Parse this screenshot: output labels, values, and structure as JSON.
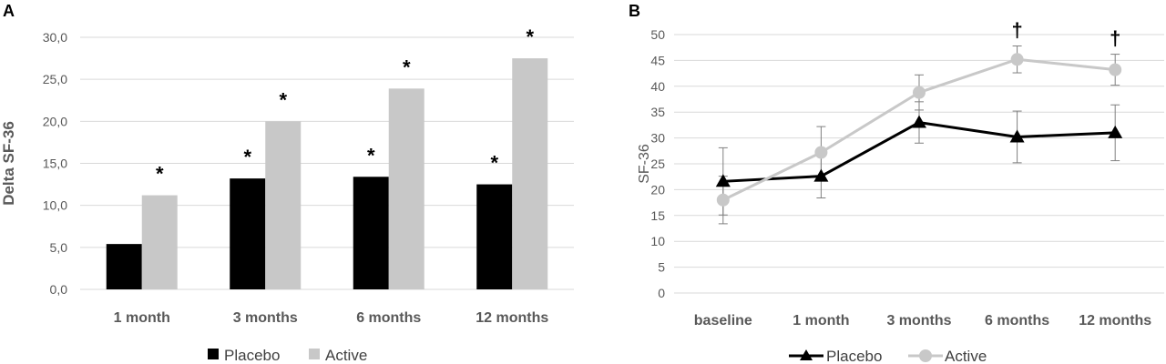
{
  "colors": {
    "placebo": "#000000",
    "active": "#c8c8c8",
    "grid": "#d9d9d9",
    "axis_text": "#595959"
  },
  "chart_data": [
    {
      "panel": "A",
      "type": "bar",
      "ylabel": "Delta SF-36",
      "ylim": [
        0,
        30
      ],
      "yticks": [
        "0,0",
        "5,0",
        "10,0",
        "15,0",
        "20,0",
        "25,0",
        "30,0"
      ],
      "grid": true,
      "legend_position": "bottom",
      "categories": [
        "1 month",
        "3 months",
        "6 months",
        "12 months"
      ],
      "series": [
        {
          "name": "Placebo",
          "values": [
            5.4,
            13.2,
            13.4,
            12.5
          ],
          "marks": [
            "",
            "*",
            "*",
            "*"
          ]
        },
        {
          "name": "Active",
          "values": [
            11.2,
            20.0,
            23.9,
            27.5
          ],
          "marks": [
            "*",
            "*",
            "*",
            "*"
          ]
        }
      ]
    },
    {
      "panel": "B",
      "type": "line",
      "ylabel": "SF-36",
      "ylim": [
        0,
        50
      ],
      "yticks": [
        "0",
        "5",
        "10",
        "15",
        "20",
        "25",
        "30",
        "35",
        "40",
        "45",
        "50"
      ],
      "grid": true,
      "legend_position": "bottom",
      "categories": [
        "baseline",
        "1 month",
        "3 months",
        "6 months",
        "12 months"
      ],
      "series": [
        {
          "name": "Placebo",
          "marker": "triangle",
          "values": [
            21.6,
            22.6,
            33.0,
            30.2,
            31.0
          ],
          "error": [
            6.5,
            4.2,
            4.0,
            5.0,
            5.4
          ]
        },
        {
          "name": "Active",
          "marker": "circle",
          "values": [
            18.0,
            27.2,
            38.8,
            45.2,
            43.2
          ],
          "error": [
            4.6,
            5.0,
            3.4,
            2.6,
            3.0
          ]
        }
      ],
      "annotations": [
        "",
        "",
        "",
        "†",
        "†"
      ]
    }
  ]
}
